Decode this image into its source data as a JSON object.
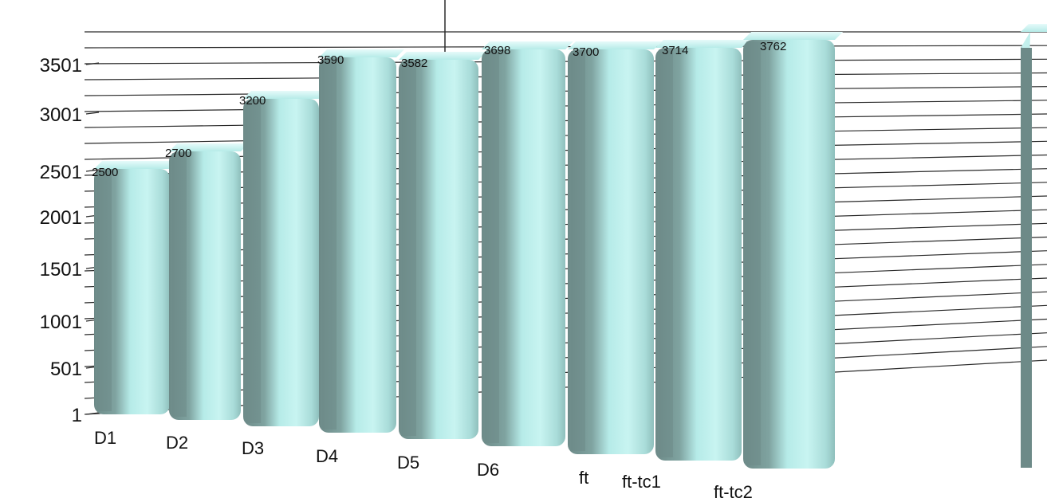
{
  "chart_data": {
    "type": "bar",
    "view": "3d-perspective",
    "categories": [
      "D1",
      "D2",
      "D3",
      "D4",
      "D5",
      "D6",
      "ft",
      "ft-tc1",
      "ft-tc2",
      ""
    ],
    "values": [
      2500,
      2700,
      3200,
      3590,
      3582,
      3698,
      3700,
      3714,
      3762,
      3762
    ],
    "value_labels": [
      "2500",
      "2700",
      "3200",
      "3590",
      "3582",
      "3698",
      "3700",
      "3714",
      "3762",
      ""
    ],
    "yticks": [
      "1",
      "501",
      "1001",
      "1501",
      "2001",
      "2501",
      "3001",
      "3501"
    ],
    "ylim": [
      1,
      4000
    ],
    "grid": true,
    "title": "",
    "xlabel": "",
    "ylabel": "",
    "colors": {
      "bar_front": "#b6ebe8",
      "bar_shadow": "#6d8a88",
      "bar_highlight": "#d4f7f5",
      "bar_top": "#c8f2ef",
      "grid": "#2a2a2a"
    }
  }
}
